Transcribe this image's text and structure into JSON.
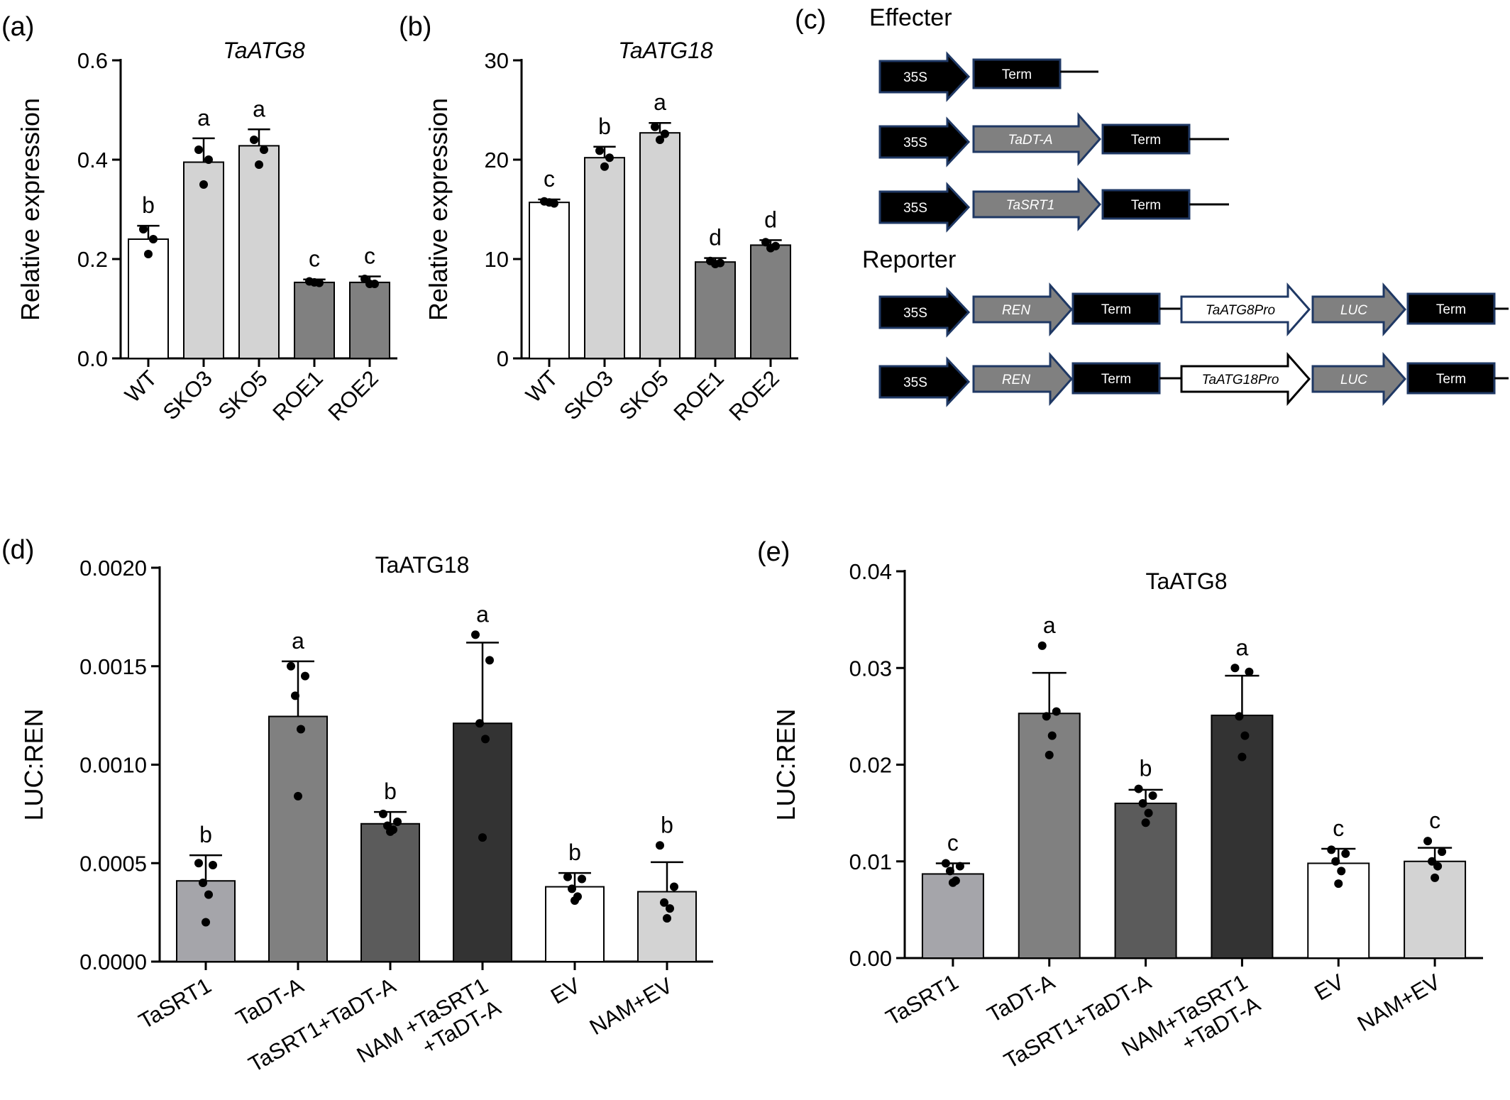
{
  "panel_labels": [
    "(a)",
    "(b)",
    "(c)",
    "(d)",
    "(e)"
  ],
  "chart_data": [
    {
      "type": "bar",
      "panel": "(a)",
      "title": "TaATG8",
      "title_italic": true,
      "xlabel": "",
      "ylabel": "Relative expression",
      "ylim": [
        0,
        0.6
      ],
      "yticks": [
        0.0,
        0.2,
        0.4,
        0.6
      ],
      "ytick_labels": [
        "0.0",
        "0.2",
        "0.4",
        "0.6"
      ],
      "categories": [
        "WT",
        "SKO3",
        "SKO5",
        "ROE1",
        "ROE2"
      ],
      "values": [
        0.24,
        0.395,
        0.428,
        0.153,
        0.153
      ],
      "errors": [
        0.027,
        0.048,
        0.033,
        0.006,
        0.012
      ],
      "points": [
        [
          0.26,
          0.24,
          0.21
        ],
        [
          0.42,
          0.4,
          0.35
        ],
        [
          0.44,
          0.42,
          0.39
        ],
        [
          0.155,
          0.152,
          0.153
        ],
        [
          0.16,
          0.15,
          0.15
        ]
      ],
      "letters": [
        "b",
        "a",
        "a",
        "c",
        "c"
      ],
      "colors": [
        "#ffffff",
        "#d3d3d3",
        "#d3d3d3",
        "#808080",
        "#808080"
      ]
    },
    {
      "type": "bar",
      "panel": "(b)",
      "title": "TaATG18",
      "title_italic": true,
      "xlabel": "",
      "ylabel": "Relative expression",
      "ylim": [
        0,
        30
      ],
      "yticks": [
        0,
        10,
        20,
        30
      ],
      "ytick_labels": [
        "0",
        "10",
        "20",
        "30"
      ],
      "categories": [
        "WT",
        "SKO3",
        "SKO5",
        "ROE1",
        "ROE2"
      ],
      "values": [
        15.7,
        20.2,
        22.7,
        9.7,
        11.4
      ],
      "errors": [
        0.3,
        1.1,
        1.0,
        0.4,
        0.5
      ],
      "points": [
        [
          15.8,
          15.6,
          15.7
        ],
        [
          20.9,
          20.2,
          19.3
        ],
        [
          23.3,
          22.6,
          22.0
        ],
        [
          9.8,
          9.6,
          9.5
        ],
        [
          11.7,
          11.3,
          11.1
        ]
      ],
      "letters": [
        "c",
        "b",
        "a",
        "d",
        "d"
      ],
      "colors": [
        "#ffffff",
        "#d3d3d3",
        "#d3d3d3",
        "#808080",
        "#808080"
      ]
    },
    {
      "type": "bar",
      "panel": "(d)",
      "title": "TaATG18",
      "title_italic": false,
      "xlabel": "",
      "ylabel": "LUC:REN",
      "ylim": [
        0,
        0.002
      ],
      "yticks": [
        0,
        0.0005,
        0.001,
        0.0015,
        0.002
      ],
      "ytick_labels": [
        "0.0000",
        "0.0005",
        "0.0010",
        "0.0015",
        "0.0020"
      ],
      "categories": [
        "TaSRT1",
        "TaDT-A",
        "TaSRT1+TaDT-A",
        "NAM +TaSRT1 +TaDT-A",
        "EV",
        "NAM+EV"
      ],
      "values": [
        0.00041,
        0.001245,
        0.0007,
        0.00121,
        0.00038,
        0.000355
      ],
      "errors": [
        0.00013,
        0.00028,
        6e-05,
        0.00041,
        7e-05,
        0.00015
      ],
      "points": [
        [
          0.0005,
          0.00049,
          0.0004,
          0.00034,
          0.0002
        ],
        [
          0.0015,
          0.00145,
          0.00135,
          0.00118,
          0.00084
        ],
        [
          0.00075,
          0.00071,
          0.00069,
          0.00067,
          0.00066
        ],
        [
          0.00166,
          0.00153,
          0.00121,
          0.00113,
          0.00063
        ],
        [
          0.00043,
          0.00042,
          0.00037,
          0.00033,
          0.00031
        ],
        [
          0.00059,
          0.00038,
          0.0003,
          0.00027,
          0.00022
        ]
      ],
      "letters": [
        "b",
        "a",
        "b",
        "a",
        "b",
        "b"
      ],
      "colors": [
        "#a5a5aa",
        "#808080",
        "#5b5b5b",
        "#333333",
        "#ffffff",
        "#d3d3d3"
      ]
    },
    {
      "type": "bar",
      "panel": "(e)",
      "title": "TaATG8",
      "title_italic": false,
      "xlabel": "",
      "ylabel": "LUC:REN",
      "ylim": [
        0,
        0.04
      ],
      "yticks": [
        0,
        0.01,
        0.02,
        0.03,
        0.04
      ],
      "ytick_labels": [
        "0.00",
        "0.01",
        "0.02",
        "0.03",
        "0.04"
      ],
      "categories": [
        "TaSRT1",
        "TaDT-A",
        "TaSRT1+TaDT-A",
        "NAM+TaSRT1 +TaDT-A",
        "EV",
        "NAM+EV"
      ],
      "values": [
        0.0087,
        0.0253,
        0.016,
        0.0251,
        0.0098,
        0.01
      ],
      "errors": [
        0.0011,
        0.0042,
        0.0014,
        0.0041,
        0.0015,
        0.0014
      ],
      "points": [
        [
          0.0098,
          0.0095,
          0.009,
          0.008,
          0.0078
        ],
        [
          0.0323,
          0.0255,
          0.025,
          0.023,
          0.021
        ],
        [
          0.0175,
          0.0168,
          0.016,
          0.015,
          0.014
        ],
        [
          0.03,
          0.0296,
          0.025,
          0.023,
          0.0208
        ],
        [
          0.0112,
          0.0108,
          0.01,
          0.009,
          0.0077
        ],
        [
          0.0121,
          0.011,
          0.01,
          0.0095,
          0.0083
        ]
      ],
      "letters": [
        "c",
        "a",
        "b",
        "a",
        "c",
        "c"
      ],
      "colors": [
        "#a5a5aa",
        "#808080",
        "#5b5b5b",
        "#333333",
        "#ffffff",
        "#d3d3d3"
      ]
    }
  ],
  "diagram": {
    "effecter_title": "Effecter",
    "reporter_title": "Reporter",
    "promoter": "35S",
    "term": "Term",
    "effecter_genes": [
      "TaDT-A",
      "TaSRT1"
    ],
    "reporter_ren": "REN",
    "reporter_promoters": [
      "TaATG8Pro",
      "TaATG18Pro"
    ],
    "reporter_luc": "LUC"
  }
}
